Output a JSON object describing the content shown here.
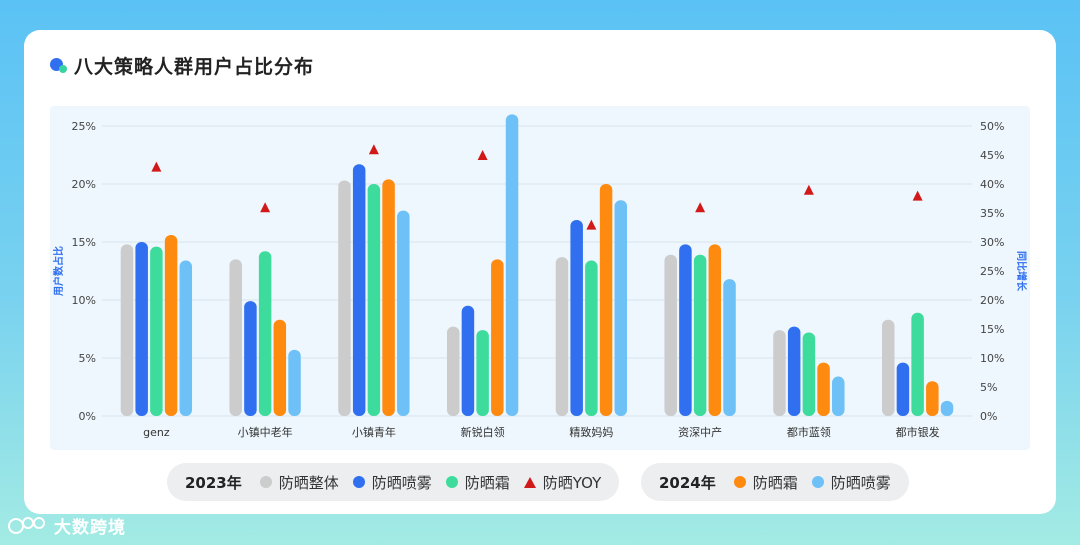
{
  "title": "八大策略人群用户占比分布",
  "legend": {
    "group2023": {
      "year": "2023年",
      "items": [
        {
          "label": "防晒整体",
          "color": "#cccccc",
          "shape": "dot"
        },
        {
          "label": "防晒喷雾",
          "color": "#2f6ff0",
          "shape": "dot"
        },
        {
          "label": "防晒霜",
          "color": "#3ddc9c",
          "shape": "dot"
        },
        {
          "label": "防晒YOY",
          "color": "#d21919",
          "shape": "triangle"
        }
      ]
    },
    "group2024": {
      "year": "2024年",
      "items": [
        {
          "label": "防晒霜",
          "color": "#ff8a10",
          "shape": "dot"
        },
        {
          "label": "防晒喷雾",
          "color": "#6ec1f7",
          "shape": "dot"
        }
      ]
    }
  },
  "brand": "大数跨境",
  "chart_data": {
    "type": "bar",
    "categories": [
      "genz",
      "小镇中老年",
      "小镇青年",
      "新锐白领",
      "精致妈妈",
      "资深中产",
      "都市蓝领",
      "都市银发"
    ],
    "series": [
      {
        "name": "2023年 防晒整体",
        "color": "#cccccc",
        "axis": "left",
        "values": [
          14.8,
          13.5,
          20.3,
          7.7,
          13.7,
          13.9,
          7.4,
          8.3
        ]
      },
      {
        "name": "2023年 防晒喷雾",
        "color": "#2f6ff0",
        "axis": "left",
        "values": [
          15.0,
          9.9,
          21.7,
          9.5,
          16.9,
          14.8,
          7.7,
          4.6
        ]
      },
      {
        "name": "2023年 防晒霜",
        "color": "#3ddc9c",
        "axis": "left",
        "values": [
          14.6,
          14.2,
          20.0,
          7.4,
          13.4,
          13.9,
          7.2,
          8.9
        ]
      },
      {
        "name": "2024年 防晒霜",
        "color": "#ff8a10",
        "axis": "left",
        "values": [
          15.6,
          8.3,
          20.4,
          13.5,
          20.0,
          14.8,
          4.6,
          3.0
        ]
      },
      {
        "name": "2024年 防晒喷雾",
        "color": "#6ec1f7",
        "axis": "left",
        "values": [
          13.4,
          5.7,
          17.7,
          26.0,
          18.6,
          11.8,
          3.4,
          1.3
        ]
      }
    ],
    "yoy": {
      "name": "防晒YOY",
      "color": "#d21919",
      "axis": "right",
      "values": [
        43,
        36,
        46,
        45,
        33,
        36,
        39,
        38
      ]
    },
    "ylabel": "用户数占比",
    "ylabel_right": "同比增长",
    "ylim": [
      0,
      25
    ],
    "ylim_right": [
      0,
      50
    ],
    "yticks": [
      "0%",
      "5%",
      "10%",
      "15%",
      "20%",
      "25%"
    ],
    "yticks_right": [
      "0%",
      "5%",
      "10%",
      "15%",
      "20%",
      "25%",
      "30%",
      "35%",
      "40%",
      "45%",
      "50%"
    ],
    "grid": true
  }
}
